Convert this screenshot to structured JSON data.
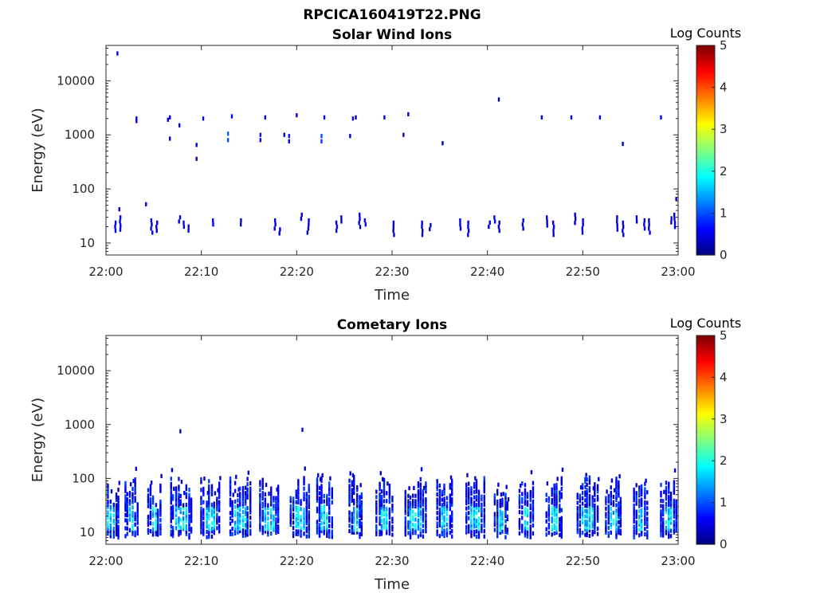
{
  "figure": {
    "title": "RPCICA160419T22.PNG"
  },
  "chart_data": [
    {
      "type": "heatmap",
      "title": "Solar Wind Ions",
      "xlabel": "Time",
      "ylabel": "Energy (eV)",
      "x_ticks": [
        "22:00",
        "22:10",
        "22:20",
        "22:30",
        "22:40",
        "22:50",
        "23:00"
      ],
      "x_range_minutes": [
        0,
        60
      ],
      "y_scale": "log",
      "y_ticks": [
        "10",
        "100",
        "1000",
        "10000"
      ],
      "ylim": [
        6,
        45000
      ],
      "colorbar": {
        "label": "Log Counts",
        "min": 0,
        "max": 5,
        "ticks": [
          "0",
          "1",
          "2",
          "3",
          "4",
          "5"
        ],
        "colormap": "jet"
      },
      "cells": [
        [
          1.2,
          32000,
          0.4
        ],
        [
          1.4,
          42,
          0.5
        ],
        [
          4.2,
          52,
          0.4
        ],
        [
          3.2,
          2000,
          0.3
        ],
        [
          3.2,
          1800,
          0.4
        ],
        [
          6.5,
          1900,
          0.5
        ],
        [
          6.7,
          2100,
          0.4
        ],
        [
          6.7,
          850,
          0.3
        ],
        [
          7.7,
          1500,
          0.3
        ],
        [
          9.5,
          650,
          0.5
        ],
        [
          9.5,
          360,
          0.4
        ],
        [
          10.2,
          2000,
          0.5
        ],
        [
          12.8,
          1050,
          1.1
        ],
        [
          12.8,
          800,
          1.0
        ],
        [
          13.2,
          2200,
          0.6
        ],
        [
          16.2,
          1000,
          0.7
        ],
        [
          16.2,
          800,
          0.6
        ],
        [
          16.7,
          2100,
          0.5
        ],
        [
          18.7,
          1000,
          0.4
        ],
        [
          19.2,
          950,
          0.7
        ],
        [
          19.2,
          760,
          0.6
        ],
        [
          20.0,
          2300,
          0.5
        ],
        [
          22.6,
          950,
          1.0
        ],
        [
          22.6,
          760,
          0.9
        ],
        [
          22.9,
          2100,
          0.5
        ],
        [
          25.6,
          950,
          0.3
        ],
        [
          25.9,
          2000,
          0.5
        ],
        [
          26.2,
          2100,
          0.4
        ],
        [
          29.2,
          2100,
          0.5
        ],
        [
          31.2,
          1000,
          0.4
        ],
        [
          31.7,
          2400,
          0.4
        ],
        [
          35.3,
          700,
          0.3
        ],
        [
          41.2,
          4500,
          0.3
        ],
        [
          45.7,
          2100,
          0.4
        ],
        [
          48.8,
          2100,
          0.5
        ],
        [
          51.8,
          2100,
          0.4
        ],
        [
          54.2,
          680,
          0.3
        ],
        [
          58.2,
          2100,
          0.4
        ],
        [
          59.8,
          65,
          0.3
        ]
      ],
      "bands": [
        [
          1.0,
          20,
          0.6
        ],
        [
          1.5,
          25,
          0.5
        ],
        [
          4.8,
          22,
          0.6
        ],
        [
          5.3,
          20,
          0.5
        ],
        [
          7.7,
          25,
          0.5
        ],
        [
          8.2,
          20,
          0.6
        ],
        [
          8.6,
          17,
          0.5
        ],
        [
          11.2,
          22,
          0.6
        ],
        [
          14.2,
          22,
          0.4
        ],
        [
          17.7,
          22,
          0.5
        ],
        [
          18.2,
          15,
          0.4
        ],
        [
          20.5,
          28,
          0.5
        ],
        [
          21.2,
          22,
          0.4
        ],
        [
          24.2,
          20,
          0.6
        ],
        [
          24.7,
          25,
          0.5
        ],
        [
          26.6,
          28,
          0.4
        ],
        [
          27.2,
          22,
          0.6
        ],
        [
          30.2,
          20,
          0.5
        ],
        [
          33.2,
          20,
          0.5
        ],
        [
          34.0,
          18,
          0.4
        ],
        [
          37.2,
          22,
          0.6
        ],
        [
          38.0,
          20,
          0.5
        ],
        [
          40.2,
          20,
          0.6
        ],
        [
          40.8,
          25,
          0.6
        ],
        [
          41.2,
          20,
          0.5
        ],
        [
          43.7,
          22,
          0.5
        ],
        [
          46.2,
          25,
          0.5
        ],
        [
          46.9,
          20,
          0.5
        ],
        [
          49.2,
          28,
          0.4
        ],
        [
          50.0,
          22,
          0.5
        ],
        [
          53.6,
          25,
          0.6
        ],
        [
          54.2,
          20,
          0.5
        ],
        [
          55.7,
          25,
          0.4
        ],
        [
          56.5,
          22,
          0.6
        ],
        [
          57.0,
          22,
          0.5
        ],
        [
          59.3,
          24,
          0.6
        ],
        [
          59.6,
          28,
          0.5
        ]
      ]
    },
    {
      "type": "heatmap",
      "title": "Cometary Ions",
      "xlabel": "Time",
      "ylabel": "Energy (eV)",
      "x_ticks": [
        "22:00",
        "22:10",
        "22:20",
        "22:30",
        "22:40",
        "22:50",
        "23:00"
      ],
      "x_range_minutes": [
        0,
        60
      ],
      "y_scale": "log",
      "y_ticks": [
        "10",
        "100",
        "1000",
        "10000"
      ],
      "ylim": [
        6,
        45000
      ],
      "colorbar": {
        "label": "Log Counts",
        "min": 0,
        "max": 5,
        "ticks": [
          "0",
          "1",
          "2",
          "3",
          "4",
          "5"
        ],
        "colormap": "jet"
      },
      "cells": [
        [
          7.8,
          750,
          0.4
        ],
        [
          20.6,
          800,
          0.4
        ]
      ],
      "bursts": [
        0.5,
        2.8,
        5.2,
        7.6,
        10.8,
        13.8,
        17.0,
        20.2,
        22.9,
        26.3,
        29.2,
        32.2,
        35.5,
        38.6,
        41.6,
        44.2,
        47.0,
        50.2,
        53.2,
        56.2,
        59.0
      ]
    }
  ]
}
